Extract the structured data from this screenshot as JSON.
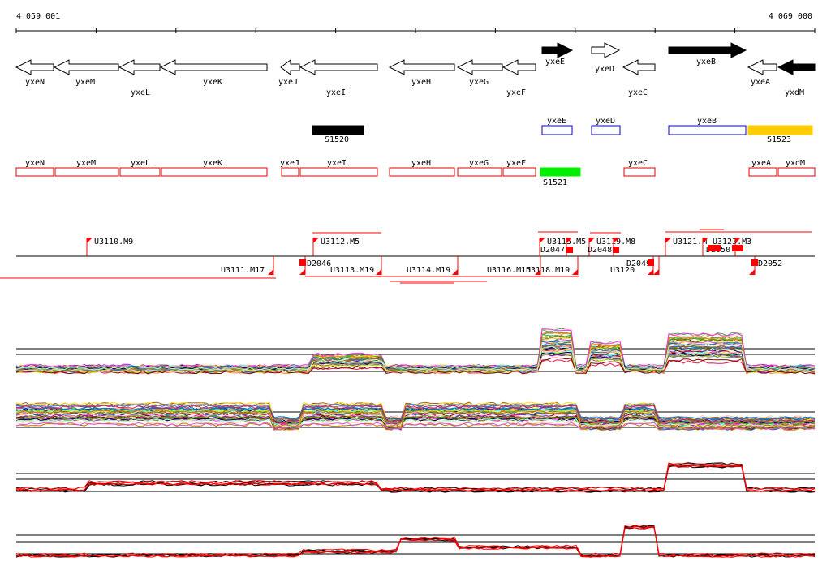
{
  "ruler": {
    "start_label": "4 059 001",
    "end_label": "4 069 000"
  },
  "genes": [
    {
      "name": "yxeN",
      "strand": "-",
      "fill": "white"
    },
    {
      "name": "yxeM",
      "strand": "-",
      "fill": "white"
    },
    {
      "name": "yxeL",
      "strand": "-",
      "fill": "white"
    },
    {
      "name": "yxeK",
      "strand": "-",
      "fill": "white"
    },
    {
      "name": "yxeJ",
      "strand": "-",
      "fill": "white"
    },
    {
      "name": "yxeI",
      "strand": "-",
      "fill": "white"
    },
    {
      "name": "yxeH",
      "strand": "-",
      "fill": "white"
    },
    {
      "name": "yxeG",
      "strand": "-",
      "fill": "white"
    },
    {
      "name": "yxeF",
      "strand": "-",
      "fill": "white"
    },
    {
      "name": "yxeE",
      "strand": "+",
      "fill": "black"
    },
    {
      "name": "yxeD",
      "strand": "+",
      "fill": "white"
    },
    {
      "name": "yxeC",
      "strand": "-",
      "fill": "white"
    },
    {
      "name": "yxeB",
      "strand": "+",
      "fill": "black"
    },
    {
      "name": "yxeA",
      "strand": "-",
      "fill": "white"
    },
    {
      "name": "yxdM",
      "strand": "-",
      "fill": "black"
    }
  ],
  "segments_upper": [
    {
      "name": "S1520",
      "color": "#000000"
    },
    {
      "name": "yxeE",
      "color": "#0000cc"
    },
    {
      "name": "yxeD",
      "color": "#0000cc"
    },
    {
      "name": "yxeB",
      "color": "#0000cc"
    },
    {
      "name": "S1523",
      "color": "#ffcc00"
    }
  ],
  "segments_lower": [
    {
      "name": "yxeN",
      "color": "#dd0000"
    },
    {
      "name": "yxeM",
      "color": "#dd0000"
    },
    {
      "name": "yxeL",
      "color": "#dd0000"
    },
    {
      "name": "yxeK",
      "color": "#dd0000"
    },
    {
      "name": "yxeJ",
      "color": "#dd0000"
    },
    {
      "name": "yxeI",
      "color": "#dd0000"
    },
    {
      "name": "yxeH",
      "color": "#dd0000"
    },
    {
      "name": "yxeG",
      "color": "#dd0000"
    },
    {
      "name": "yxeF",
      "color": "#dd0000"
    },
    {
      "name": "S1521",
      "color": "#00ee00"
    },
    {
      "name": "yxeC",
      "color": "#dd0000"
    },
    {
      "name": "yxeA",
      "color": "#dd0000"
    },
    {
      "name": "yxdM",
      "color": "#dd0000"
    }
  ],
  "features_top": [
    {
      "name": "U3110.M9"
    },
    {
      "name": "U3112.M5"
    },
    {
      "name": "U3115.M5"
    },
    {
      "name": "D2047"
    },
    {
      "name": "U3119.M8"
    },
    {
      "name": "D2048"
    },
    {
      "name": "U3121.M"
    },
    {
      "name": "U3123.M3"
    },
    {
      "name": "D2050"
    }
  ],
  "features_bottom": [
    {
      "name": "U3111.M17"
    },
    {
      "name": "D2046"
    },
    {
      "name": "U3113.M19"
    },
    {
      "name": "U3114.M19"
    },
    {
      "name": "U3116.M15"
    },
    {
      "name": "U3118.M19"
    },
    {
      "name": "U3120"
    },
    {
      "name": "D2049"
    },
    {
      "name": "D2052"
    }
  ],
  "track_colors": {
    "accent": "#ff0000",
    "black": "#000000"
  }
}
